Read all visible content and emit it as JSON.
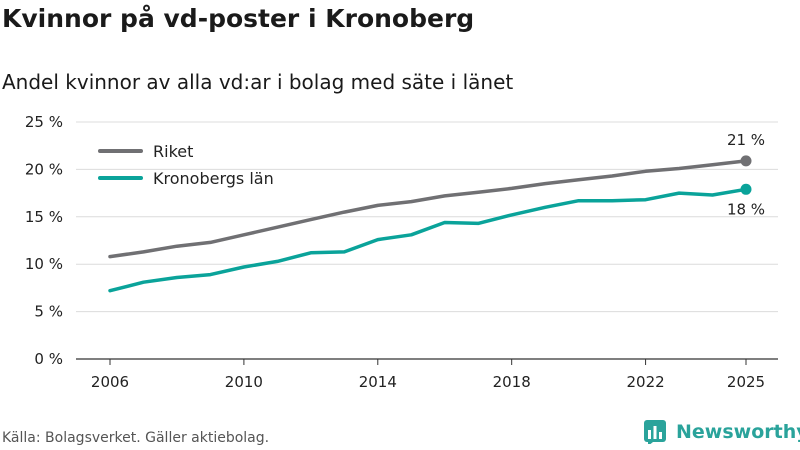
{
  "header": {
    "title": "Kvinnor på vd-poster i Kronoberg",
    "subtitle": "Andel kvinnor av alla vd:ar i bolag med säte i länet"
  },
  "footer": {
    "source": "Källa: Bolagsverket. Gäller aktiebolag.",
    "brand": "Newsworthy",
    "brand_icon": "bar-chart-logo-icon",
    "brand_color": "#2aa39b"
  },
  "chart_data": {
    "type": "line",
    "title": "Kvinnor på vd-poster i Kronoberg",
    "subtitle": "Andel kvinnor av alla vd:ar i bolag med säte i länet",
    "xlabel": "",
    "ylabel": "",
    "x": [
      2006,
      2007,
      2008,
      2009,
      2010,
      2011,
      2012,
      2013,
      2014,
      2015,
      2016,
      2017,
      2018,
      2019,
      2020,
      2021,
      2022,
      2023,
      2024,
      2025
    ],
    "x_ticks": [
      2006,
      2010,
      2014,
      2018,
      2022,
      2025
    ],
    "x_tick_labels": [
      "2006",
      "2010",
      "2014",
      "2018",
      "2022",
      "2025"
    ],
    "ylim": [
      0,
      25
    ],
    "y_ticks": [
      0,
      5,
      10,
      15,
      20,
      25
    ],
    "y_tick_labels": [
      "0 %",
      "5 %",
      "10 %",
      "15 %",
      "20 %",
      "25 %"
    ],
    "grid": true,
    "legend_position": "top-left",
    "series": [
      {
        "name": "Riket",
        "color": "#707073",
        "values": [
          10.8,
          11.3,
          11.9,
          12.3,
          13.1,
          13.9,
          14.7,
          15.5,
          16.2,
          16.6,
          17.2,
          17.6,
          18.0,
          18.5,
          18.9,
          19.3,
          19.8,
          20.1,
          20.5,
          20.9
        ],
        "end_label": "21 %"
      },
      {
        "name": "Kronobergs län",
        "color": "#0aa39a",
        "values": [
          7.2,
          8.1,
          8.6,
          8.9,
          9.7,
          10.3,
          11.2,
          11.3,
          12.6,
          13.1,
          14.4,
          14.3,
          15.2,
          16.0,
          16.7,
          16.7,
          16.8,
          17.5,
          17.3,
          17.9
        ],
        "end_label": "18 %"
      }
    ]
  }
}
